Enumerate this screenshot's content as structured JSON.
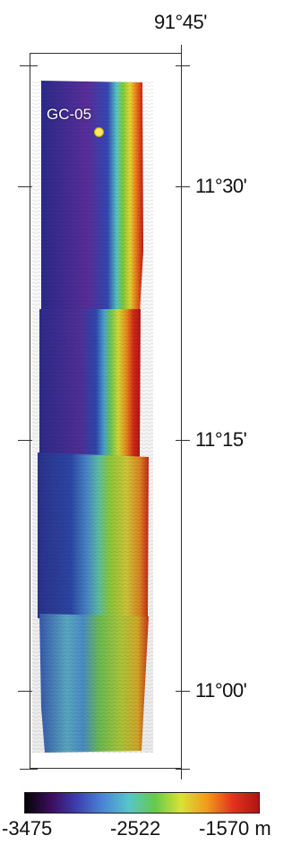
{
  "map": {
    "longitude_label": "91°45'",
    "latitude_labels": [
      "11°30'",
      "11°15'",
      "11°00'"
    ],
    "site": {
      "name": "GC-05",
      "color": "#ffe866"
    },
    "colorbar": {
      "min_label": "-3475",
      "mid_label": "-2522",
      "max_label": "-1570 m",
      "colors": [
        "#050505",
        "#3b0d5e",
        "#3d3fae",
        "#4a86d6",
        "#58c6c7",
        "#66c94c",
        "#d9e236",
        "#f29a1b",
        "#e3331b",
        "#b01414"
      ]
    }
  }
}
